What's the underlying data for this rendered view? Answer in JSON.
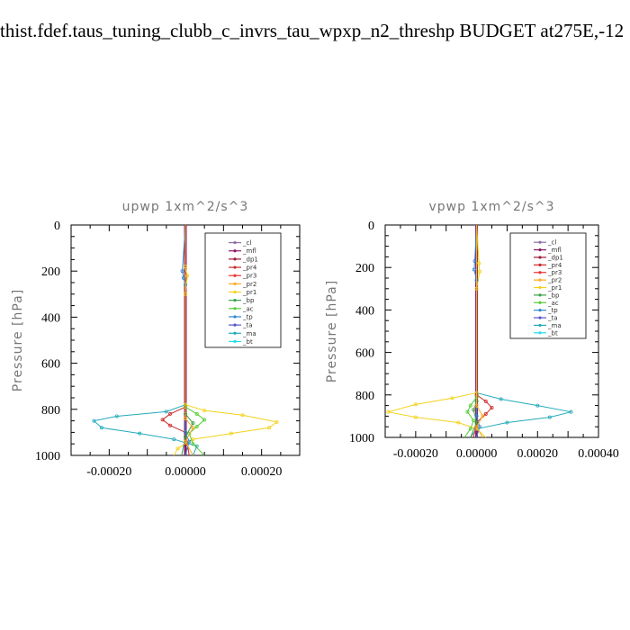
{
  "page_title": "thist.fdef.taus_tuning_clubb_c_invrs_tau_wpxp_n2_threshp  BUDGET at275E,-12",
  "legend_items": [
    {
      "label": "_cl",
      "color": "#8e6fa8"
    },
    {
      "label": "_mfl",
      "color": "#8b1a6a"
    },
    {
      "label": "_dp1",
      "color": "#a31b3a"
    },
    {
      "label": "_pr4",
      "color": "#cc2a2a"
    },
    {
      "label": "_pr3",
      "color": "#ee3333"
    },
    {
      "label": "_pr2",
      "color": "#ffaa22"
    },
    {
      "label": "_pr1",
      "color": "#f2d21a"
    },
    {
      "label": "_bp",
      "color": "#3aa24a"
    },
    {
      "label": "_ac",
      "color": "#55cc33"
    },
    {
      "label": "_tp",
      "color": "#3388cc"
    },
    {
      "label": "_ta",
      "color": "#5555cc"
    },
    {
      "label": "_ma",
      "color": "#22aabb"
    },
    {
      "label": "_bt",
      "color": "#22ddee"
    }
  ],
  "chart_data": [
    {
      "type": "line",
      "title": "upwp   1xm^2/s^3",
      "ylabel": "Pressure [hPa]",
      "xlabel": "",
      "xlim": [
        -0.0003,
        0.0003
      ],
      "ylim": [
        1000,
        0
      ],
      "x_ticks": [
        "-0.00020",
        "0.00000",
        "0.00020"
      ],
      "x_tick_values": [
        -0.0002,
        0,
        0.0002
      ],
      "y_ticks": [
        "0",
        "200",
        "400",
        "600",
        "800",
        "1000"
      ],
      "y_tick_values": [
        0,
        200,
        400,
        600,
        800,
        1000
      ],
      "series": [
        {
          "name": "_mfl",
          "color": "#8b1a6a",
          "width": 3,
          "points": [
            [
              0.0,
              0
            ],
            [
              0.0,
              1000
            ]
          ]
        },
        {
          "name": "_ma",
          "color": "#22aabb",
          "width": 1,
          "points": [
            [
              0.0,
              0
            ],
            [
              0.0,
              780
            ],
            [
              -5e-05,
              810
            ],
            [
              -0.00018,
              830
            ],
            [
              -0.00024,
              850
            ],
            [
              -0.00022,
              880
            ],
            [
              -0.00012,
              905
            ],
            [
              -3e-05,
              930
            ],
            [
              3e-05,
              960
            ],
            [
              2e-05,
              1000
            ]
          ]
        },
        {
          "name": "_pr1",
          "color": "#f2d21a",
          "width": 1,
          "points": [
            [
              0.0,
              0
            ],
            [
              0.0,
              180
            ],
            [
              5e-06,
              220
            ],
            [
              0.0,
              300
            ],
            [
              0.0,
              780
            ],
            [
              5e-05,
              805
            ],
            [
              0.00015,
              825
            ],
            [
              0.00024,
              855
            ],
            [
              0.00022,
              880
            ],
            [
              0.00012,
              905
            ],
            [
              2e-05,
              930
            ],
            [
              -2e-05,
              970
            ],
            [
              -3e-05,
              1000
            ]
          ]
        },
        {
          "name": "_pr4",
          "color": "#cc2a2a",
          "width": 1,
          "points": [
            [
              0.0,
              0
            ],
            [
              0.0,
              790
            ],
            [
              -4e-05,
              820
            ],
            [
              -6e-05,
              845
            ],
            [
              -4e-05,
              870
            ],
            [
              0.0,
              900
            ],
            [
              1e-05,
              1000
            ]
          ]
        },
        {
          "name": "_ac",
          "color": "#55cc33",
          "width": 1,
          "points": [
            [
              0.0,
              0
            ],
            [
              0.0,
              790
            ],
            [
              3e-05,
              820
            ],
            [
              5e-05,
              845
            ],
            [
              3e-05,
              875
            ],
            [
              1e-05,
              905
            ],
            [
              2e-05,
              950
            ],
            [
              5e-05,
              1000
            ]
          ]
        },
        {
          "name": "_bp",
          "color": "#3aa24a",
          "width": 1,
          "points": [
            [
              0.0,
              0
            ],
            [
              0.0,
              820
            ],
            [
              2e-05,
              860
            ],
            [
              0.0,
              920
            ],
            [
              -1e-05,
              1000
            ]
          ]
        },
        {
          "name": "_tp",
          "color": "#3388cc",
          "width": 1,
          "points": [
            [
              0.0,
              0
            ],
            [
              -8e-06,
              200
            ],
            [
              -5e-06,
              230
            ],
            [
              0.0,
              260
            ],
            [
              0.0,
              900
            ],
            [
              1e-05,
              940
            ],
            [
              0.0,
              1000
            ]
          ]
        },
        {
          "name": "_pr2",
          "color": "#ffaa22",
          "width": 1,
          "points": [
            [
              0.0,
              0
            ],
            [
              0.0,
              840
            ],
            [
              2e-05,
              880
            ],
            [
              0.0,
              940
            ],
            [
              2e-05,
              1000
            ]
          ]
        }
      ]
    },
    {
      "type": "line",
      "title": "vpwp   1xm^2/s^3",
      "ylabel": "Pressure [hPa]",
      "xlabel": "",
      "xlim": [
        -0.0003,
        0.0004
      ],
      "ylim": [
        1000,
        0
      ],
      "x_ticks": [
        "-0.00020",
        "0.00000",
        "0.00020",
        "0.00040"
      ],
      "x_tick_values": [
        -0.0002,
        0,
        0.0002,
        0.0004
      ],
      "y_ticks": [
        "0",
        "200",
        "400",
        "600",
        "800",
        "1000"
      ],
      "y_tick_values": [
        0,
        200,
        400,
        600,
        800,
        1000
      ],
      "series": [
        {
          "name": "_mfl",
          "color": "#8b1a6a",
          "width": 3,
          "points": [
            [
              0.0,
              0
            ],
            [
              0.0,
              1000
            ]
          ]
        },
        {
          "name": "_ma",
          "color": "#22aabb",
          "width": 1,
          "points": [
            [
              0.0,
              0
            ],
            [
              0.0,
              790
            ],
            [
              8e-05,
              820
            ],
            [
              0.0002,
              850
            ],
            [
              0.00031,
              880
            ],
            [
              0.00024,
              905
            ],
            [
              0.0001,
              930
            ],
            [
              0.0,
              960
            ],
            [
              -2e-05,
              1000
            ]
          ]
        },
        {
          "name": "_pr1",
          "color": "#f2d21a",
          "width": 1,
          "points": [
            [
              0.0,
              0
            ],
            [
              8e-06,
              180
            ],
            [
              1e-05,
              220
            ],
            [
              0.0,
              300
            ],
            [
              0.0,
              790
            ],
            [
              -8e-05,
              815
            ],
            [
              -0.0002,
              845
            ],
            [
              -0.00029,
              880
            ],
            [
              -0.0002,
              905
            ],
            [
              -6e-05,
              930
            ],
            [
              0.0,
              960
            ],
            [
              3e-05,
              1000
            ]
          ]
        },
        {
          "name": "_pr4",
          "color": "#cc2a2a",
          "width": 1,
          "points": [
            [
              0.0,
              0
            ],
            [
              0.0,
              800
            ],
            [
              3e-05,
              830
            ],
            [
              5e-05,
              860
            ],
            [
              3e-05,
              890
            ],
            [
              0.0,
              930
            ],
            [
              -1e-05,
              1000
            ]
          ]
        },
        {
          "name": "_ac",
          "color": "#55cc33",
          "width": 1,
          "points": [
            [
              0.0,
              0
            ],
            [
              0.0,
              810
            ],
            [
              -2e-05,
              850
            ],
            [
              -3e-05,
              880
            ],
            [
              -1e-05,
              920
            ],
            [
              -2e-05,
              960
            ],
            [
              -4e-05,
              1000
            ]
          ]
        },
        {
          "name": "_bp",
          "color": "#3aa24a",
          "width": 1,
          "points": [
            [
              0.0,
              0
            ],
            [
              0.0,
              830
            ],
            [
              -1e-05,
              870
            ],
            [
              0.0,
              930
            ],
            [
              -2e-05,
              1000
            ]
          ]
        },
        {
          "name": "_tp",
          "color": "#3388cc",
          "width": 1,
          "points": [
            [
              0.0,
              0
            ],
            [
              -6e-06,
              170
            ],
            [
              -8e-06,
              210
            ],
            [
              0.0,
              260
            ],
            [
              0.0,
              900
            ],
            [
              1e-05,
              950
            ],
            [
              0.0,
              1000
            ]
          ]
        },
        {
          "name": "_pr2",
          "color": "#ffaa22",
          "width": 1,
          "points": [
            [
              0.0,
              0
            ],
            [
              0.0,
              850
            ],
            [
              2e-05,
              900
            ],
            [
              0.0,
              950
            ],
            [
              2e-05,
              1000
            ]
          ]
        }
      ]
    }
  ]
}
